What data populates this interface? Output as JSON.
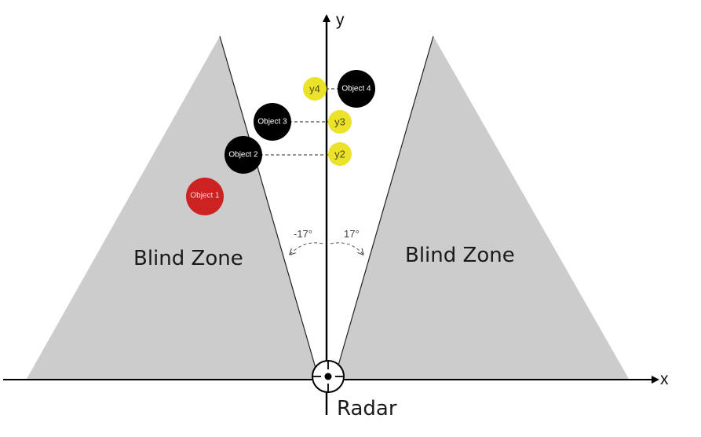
{
  "axes": {
    "x_label": "x",
    "y_label": "y"
  },
  "zones": {
    "left_label": "Blind Zone",
    "right_label": "Blind Zone"
  },
  "angles": {
    "left": "-17°",
    "right": "17°"
  },
  "radar": {
    "label": "Radar"
  },
  "objects": {
    "object1": "Object 1",
    "object2": "Object 2",
    "object3": "Object 3",
    "object4": "Object 4"
  },
  "y_markers": {
    "y2": "y2",
    "y3": "y3",
    "y4": "y4"
  },
  "colors": {
    "zone_fill": "#cccccc",
    "object_dark": "#000000",
    "object_red": "#cc2222",
    "marker_yellow": "#ece22a",
    "axis": "#000000"
  }
}
